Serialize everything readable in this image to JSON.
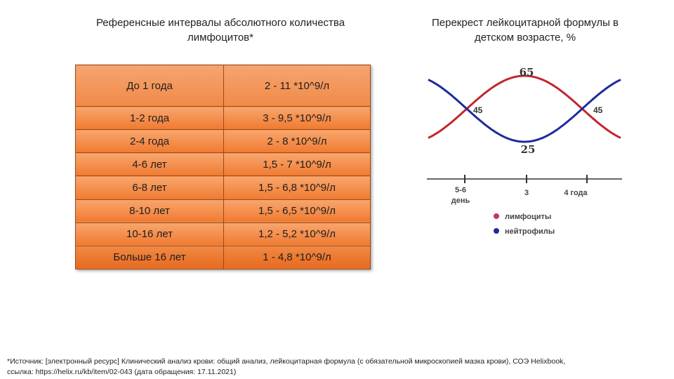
{
  "left_title": "Референсные интервалы абсолютного количества лимфоцитов*",
  "right_title": "Перекрест лейкоцитарной формулы в детском возрасте, %",
  "table": {
    "rows": [
      {
        "age": "До 1 года",
        "range": "2 - 11 *10^9/л"
      },
      {
        "age": "1-2 года",
        "range": "3 - 9,5 *10^9/л"
      },
      {
        "age": "2-4 года",
        "range": "2 - 8 *10^9/л"
      },
      {
        "age": "4-6 лет",
        "range": "1,5 - 7 *10^9/л"
      },
      {
        "age": "6-8 лет",
        "range": "1,5 - 6,8 *10^9/л"
      },
      {
        "age": "8-10 лет",
        "range": "1,5 - 6,5 *10^9/л"
      },
      {
        "age": "10-16 лет",
        "range": "1,2 - 5,2 *10^9/л"
      },
      {
        "age": "Больше 16 лет",
        "range": "1 - 4,8 *10^9/л"
      }
    ]
  },
  "chart_data": {
    "type": "line",
    "title": "Перекрест лейкоцитарной формулы в детском возрасте, %",
    "x_ticks": [
      "5-6 день",
      "3",
      "4 года"
    ],
    "point_labels": {
      "peak": "65",
      "trough": "25",
      "cross_left": "45",
      "cross_right": "45"
    },
    "series": [
      {
        "name": "лимфоциты",
        "color": "#c0272d",
        "values": [
          45,
          65,
          45
        ]
      },
      {
        "name": "нейтрофилы",
        "color": "#1f2a9c",
        "values": [
          45,
          25,
          45
        ]
      }
    ],
    "legend": [
      {
        "label": "лимфоциты",
        "color": "#c8306e"
      },
      {
        "label": "нейтрофилы",
        "color": "#1f2a9c"
      }
    ]
  },
  "footnote": {
    "line1": "*Источник: [электронный ресурс] Клинический анализ крови: общий анализ, лейкоцитарная формула (с обязательной микроскопией мазка крови), СОЭ Helixbook,",
    "line2": "ссылка: https://helix.ru/kb/item/02-043  (дата обращения: 17.11.2021)"
  }
}
